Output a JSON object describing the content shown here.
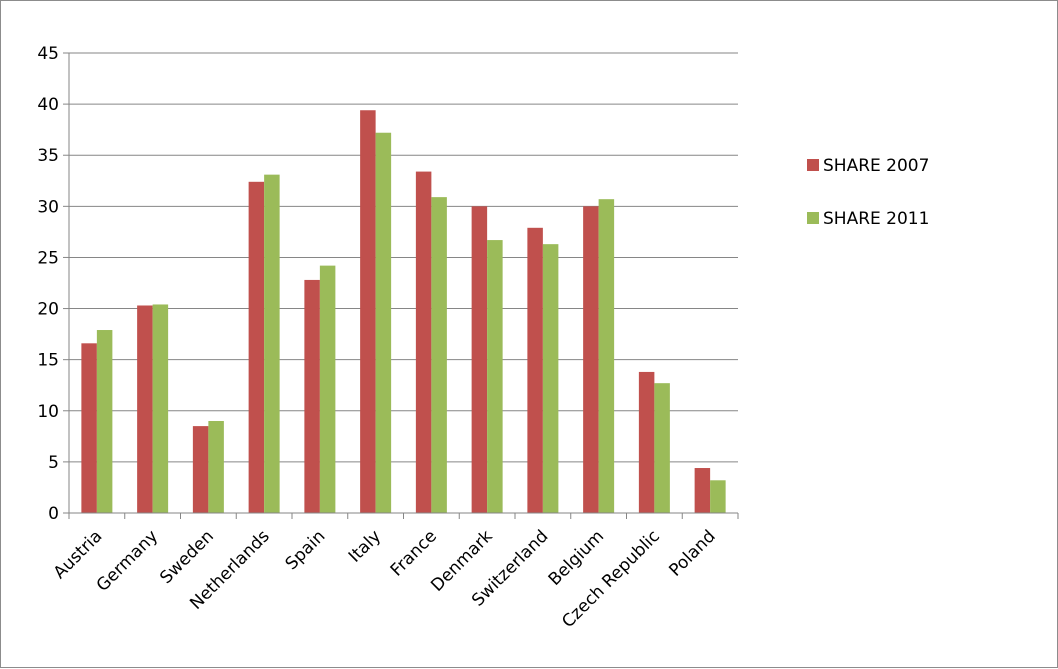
{
  "chart_data": {
    "type": "bar",
    "categories": [
      "Austria",
      "Germany",
      "Sweden",
      "Netherlands",
      "Spain",
      "Italy",
      "France",
      "Denmark",
      "Switzerland",
      "Belgium",
      "Czech Republic",
      "Poland"
    ],
    "series": [
      {
        "name": "SHARE 2007",
        "color": "#c0504d",
        "values": [
          16.6,
          20.3,
          8.5,
          32.4,
          22.8,
          39.4,
          33.4,
          30.0,
          27.9,
          30.0,
          13.8,
          4.4
        ]
      },
      {
        "name": "SHARE 2011",
        "color": "#9bbb59",
        "values": [
          17.9,
          20.4,
          9.0,
          33.1,
          24.2,
          37.2,
          30.9,
          26.7,
          26.3,
          30.7,
          12.7,
          3.2
        ]
      }
    ],
    "ylim": [
      0,
      45
    ],
    "yticks": [
      "0",
      "5",
      "10",
      "15",
      "20",
      "25",
      "30",
      "35",
      "40",
      "45"
    ],
    "grid": true,
    "legend_position": "right",
    "title": "",
    "xlabel": "",
    "ylabel": ""
  }
}
